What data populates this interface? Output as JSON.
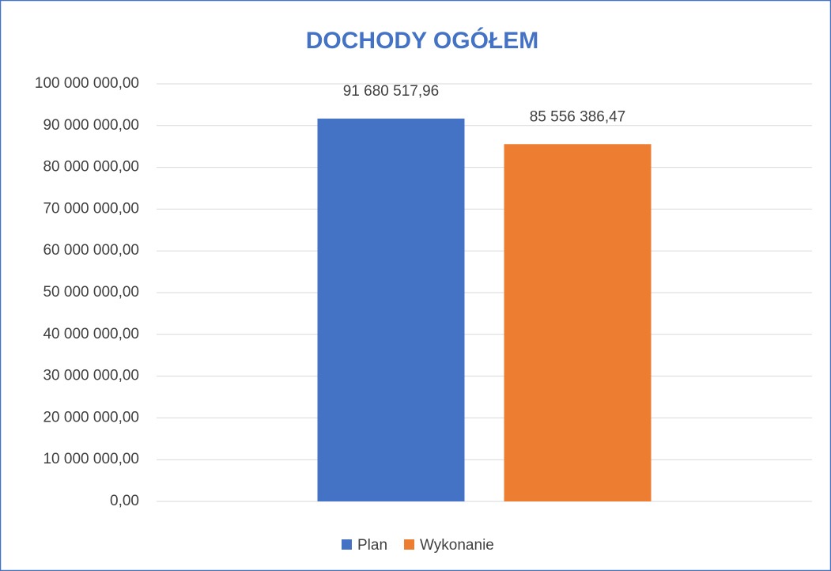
{
  "chart_data": {
    "type": "bar",
    "title": "DOCHODY OGÓŁEM",
    "categories": [
      null
    ],
    "series": [
      {
        "name": "Plan",
        "color": "#4472c4",
        "values": [
          91680517.96
        ],
        "value_labels": [
          "91 680 517,96"
        ]
      },
      {
        "name": "Wykonanie",
        "color": "#ed7d31",
        "values": [
          85556386.47
        ],
        "value_labels": [
          "85 556 386,47"
        ]
      }
    ],
    "ylim": [
      0,
      100000000
    ],
    "yticks": [
      {
        "value": 0,
        "label": "0,00"
      },
      {
        "value": 10000000,
        "label": "10 000 000,00"
      },
      {
        "value": 20000000,
        "label": "20 000 000,00"
      },
      {
        "value": 30000000,
        "label": "30 000 000,00"
      },
      {
        "value": 40000000,
        "label": "40 000 000,00"
      },
      {
        "value": 50000000,
        "label": "50 000 000,00"
      },
      {
        "value": 60000000,
        "label": "60 000 000,00"
      },
      {
        "value": 70000000,
        "label": "70 000 000,00"
      },
      {
        "value": 80000000,
        "label": "80 000 000,00"
      },
      {
        "value": 90000000,
        "label": "90 000 000,00"
      },
      {
        "value": 100000000,
        "label": "100 000 000,00"
      }
    ],
    "grid": true,
    "legend": "bottom"
  }
}
